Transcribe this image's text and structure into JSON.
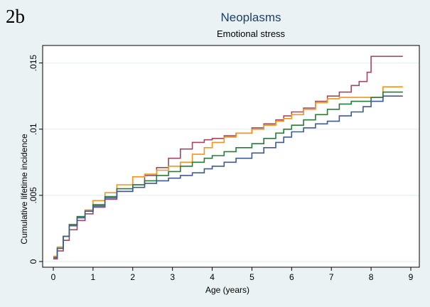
{
  "panel_label": "2b",
  "colors": {
    "outer_background": "#eaf2f3",
    "plot_background": "#ffffff",
    "gridline": "#eaf2f3",
    "title": "#1e3f66"
  },
  "chart_data": {
    "type": "line",
    "step": true,
    "title": "Neoplasms",
    "subtitle": "Emotional stress",
    "xlabel": "Age (years)",
    "ylabel": "Cumulative lifetime incidence",
    "xlim": [
      0,
      9
    ],
    "ylim": [
      0,
      0.016
    ],
    "x_ticks": [
      0,
      1,
      2,
      3,
      4,
      5,
      6,
      7,
      8,
      9
    ],
    "x_tick_labels": [
      "0",
      "1",
      "2",
      "3",
      "4",
      "5",
      "6",
      "7",
      "8",
      "9"
    ],
    "y_ticks": [
      0,
      0.005,
      0.01,
      0.015
    ],
    "y_tick_labels": [
      "0",
      ".005",
      ".01",
      ".015"
    ],
    "grid": true,
    "legend": "none",
    "series": [
      {
        "color": "#9a4a63",
        "x": [
          0,
          0.1,
          0.25,
          0.4,
          0.6,
          0.8,
          1.0,
          1.3,
          1.6,
          2.0,
          2.3,
          2.6,
          2.9,
          3.2,
          3.5,
          3.8,
          4.0,
          4.3,
          4.6,
          5.0,
          5.3,
          5.6,
          5.8,
          6.0,
          6.3,
          6.6,
          6.9,
          7.2,
          7.5,
          7.7,
          7.9,
          8.0,
          8.2,
          8.5,
          8.8
        ],
        "y": [
          0.0002,
          0.0008,
          0.0016,
          0.0024,
          0.0031,
          0.0036,
          0.0041,
          0.0047,
          0.0053,
          0.0058,
          0.0065,
          0.0071,
          0.0078,
          0.0085,
          0.009,
          0.0092,
          0.0093,
          0.0095,
          0.0097,
          0.0101,
          0.0104,
          0.0107,
          0.011,
          0.0113,
          0.0116,
          0.0121,
          0.0125,
          0.0128,
          0.0133,
          0.0136,
          0.0143,
          0.0155,
          0.0155,
          0.0155,
          0.0155
        ]
      },
      {
        "color": "#f5931e",
        "x": [
          0,
          0.1,
          0.25,
          0.4,
          0.6,
          0.8,
          1.0,
          1.3,
          1.6,
          2.0,
          2.3,
          2.6,
          2.9,
          3.2,
          3.5,
          3.8,
          4.0,
          4.3,
          4.6,
          5.0,
          5.3,
          5.6,
          5.8,
          6.0,
          6.3,
          6.6,
          6.9,
          7.2,
          7.5,
          7.8,
          8.0,
          8.3,
          8.8
        ],
        "y": [
          0.0004,
          0.0011,
          0.0019,
          0.0027,
          0.0033,
          0.0039,
          0.0046,
          0.0052,
          0.0058,
          0.0064,
          0.0066,
          0.0069,
          0.0072,
          0.0075,
          0.0081,
          0.0086,
          0.009,
          0.0094,
          0.0097,
          0.01,
          0.0103,
          0.0106,
          0.0108,
          0.0111,
          0.0115,
          0.012,
          0.0123,
          0.0124,
          0.0124,
          0.0124,
          0.0124,
          0.0132,
          0.0132
        ]
      },
      {
        "color": "#2a7b3a",
        "x": [
          0,
          0.1,
          0.25,
          0.4,
          0.6,
          0.8,
          1.0,
          1.3,
          1.6,
          2.0,
          2.3,
          2.6,
          2.9,
          3.2,
          3.5,
          3.8,
          4.0,
          4.3,
          4.6,
          5.0,
          5.3,
          5.6,
          5.8,
          6.0,
          6.3,
          6.6,
          6.9,
          7.2,
          7.5,
          7.8,
          8.0,
          8.3,
          8.8
        ],
        "y": [
          0.0003,
          0.001,
          0.0019,
          0.0028,
          0.0034,
          0.0038,
          0.0043,
          0.0049,
          0.0055,
          0.0058,
          0.0061,
          0.0065,
          0.0068,
          0.0072,
          0.0075,
          0.0078,
          0.008,
          0.0083,
          0.0086,
          0.0089,
          0.0093,
          0.0097,
          0.01,
          0.0103,
          0.0107,
          0.0111,
          0.0115,
          0.0119,
          0.0121,
          0.0121,
          0.0124,
          0.0128,
          0.0128
        ]
      },
      {
        "color": "#3e5a92",
        "x": [
          0,
          0.1,
          0.25,
          0.4,
          0.6,
          0.8,
          1.0,
          1.3,
          1.6,
          2.0,
          2.3,
          2.6,
          2.9,
          3.2,
          3.5,
          3.8,
          4.0,
          4.3,
          4.6,
          5.0,
          5.3,
          5.6,
          5.8,
          6.0,
          6.3,
          6.6,
          6.9,
          7.2,
          7.5,
          7.8,
          8.0,
          8.3,
          8.8
        ],
        "y": [
          0.0003,
          0.001,
          0.0019,
          0.0027,
          0.0033,
          0.0038,
          0.0042,
          0.0048,
          0.0053,
          0.0056,
          0.0059,
          0.0061,
          0.0063,
          0.0065,
          0.0067,
          0.007,
          0.0072,
          0.0075,
          0.0078,
          0.0082,
          0.0086,
          0.009,
          0.0094,
          0.0098,
          0.0101,
          0.0104,
          0.0106,
          0.011,
          0.0113,
          0.0117,
          0.0121,
          0.0125,
          0.0125
        ]
      }
    ]
  }
}
